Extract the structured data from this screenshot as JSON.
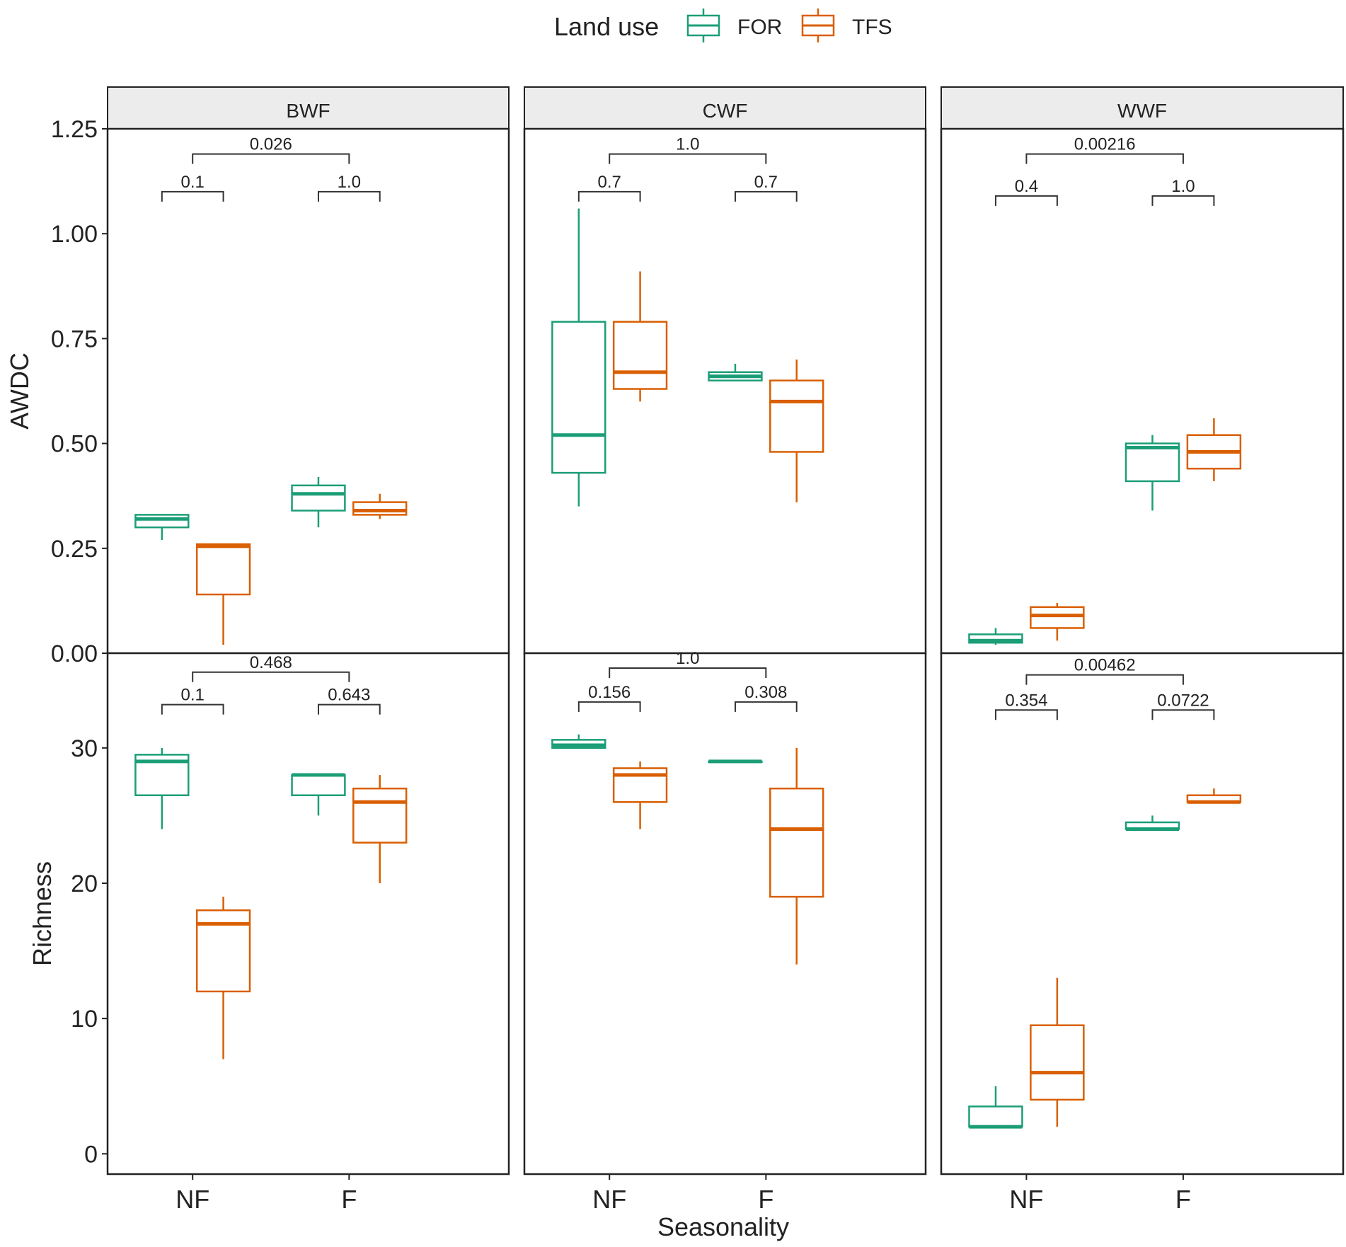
{
  "legend": {
    "title": "Land use",
    "items": [
      {
        "key": "FOR",
        "label": "FOR",
        "color": "#1b9e77"
      },
      {
        "key": "TFS",
        "label": "TFS",
        "color": "#d95f02"
      }
    ]
  },
  "chart_data": {
    "type": "boxplot",
    "xlabel": "Seasonality",
    "categories": [
      "NF",
      "F"
    ],
    "facets": [
      "BWF",
      "CWF",
      "WWF"
    ],
    "rows": [
      {
        "ylabel": "AWDC",
        "ylim": [
          0,
          1.25
        ],
        "ticks": [
          0,
          0.25,
          0.5,
          0.75,
          1.0,
          1.25
        ],
        "tick_labels": [
          "0.00",
          "0.25",
          "0.50",
          "0.75",
          "1.00",
          "1.25"
        ],
        "panels": [
          {
            "facet": "BWF",
            "boxes": [
              {
                "cat": "NF",
                "group": "FOR",
                "min": 0.27,
                "q1": 0.3,
                "median": 0.32,
                "q3": 0.33,
                "max": 0.33
              },
              {
                "cat": "NF",
                "group": "TFS",
                "min": 0.02,
                "q1": 0.14,
                "median": 0.255,
                "q3": 0.26,
                "max": 0.26
              },
              {
                "cat": "F",
                "group": "FOR",
                "min": 0.3,
                "q1": 0.34,
                "median": 0.38,
                "q3": 0.4,
                "max": 0.42
              },
              {
                "cat": "F",
                "group": "TFS",
                "min": 0.32,
                "q1": 0.33,
                "median": 0.34,
                "q3": 0.36,
                "max": 0.38
              }
            ],
            "brackets": [
              {
                "from": "NF-FOR",
                "to": "NF-TFS",
                "value": 1.1,
                "label": "0.1"
              },
              {
                "from": "F-FOR",
                "to": "F-TFS",
                "value": 1.1,
                "label": "1.0"
              },
              {
                "from": "NF",
                "to": "F",
                "value": 1.19,
                "label": "0.026"
              }
            ]
          },
          {
            "facet": "CWF",
            "boxes": [
              {
                "cat": "NF",
                "group": "FOR",
                "min": 0.35,
                "q1": 0.43,
                "median": 0.52,
                "q3": 0.79,
                "max": 1.06
              },
              {
                "cat": "NF",
                "group": "TFS",
                "min": 0.6,
                "q1": 0.63,
                "median": 0.67,
                "q3": 0.79,
                "max": 0.91
              },
              {
                "cat": "F",
                "group": "FOR",
                "min": 0.65,
                "q1": 0.65,
                "median": 0.66,
                "q3": 0.67,
                "max": 0.69
              },
              {
                "cat": "F",
                "group": "TFS",
                "min": 0.36,
                "q1": 0.48,
                "median": 0.6,
                "q3": 0.65,
                "max": 0.7
              }
            ],
            "brackets": [
              {
                "from": "NF-FOR",
                "to": "NF-TFS",
                "value": 1.1,
                "label": "0.7"
              },
              {
                "from": "F-FOR",
                "to": "F-TFS",
                "value": 1.1,
                "label": "0.7"
              },
              {
                "from": "NF",
                "to": "F",
                "value": 1.19,
                "label": "1.0"
              }
            ]
          },
          {
            "facet": "WWF",
            "boxes": [
              {
                "cat": "NF",
                "group": "FOR",
                "min": 0.02,
                "q1": 0.025,
                "median": 0.03,
                "q3": 0.045,
                "max": 0.06
              },
              {
                "cat": "NF",
                "group": "TFS",
                "min": 0.03,
                "q1": 0.06,
                "median": 0.09,
                "q3": 0.11,
                "max": 0.12
              },
              {
                "cat": "F",
                "group": "FOR",
                "min": 0.34,
                "q1": 0.41,
                "median": 0.49,
                "q3": 0.5,
                "max": 0.52
              },
              {
                "cat": "F",
                "group": "TFS",
                "min": 0.41,
                "q1": 0.44,
                "median": 0.48,
                "q3": 0.52,
                "max": 0.56
              }
            ],
            "brackets": [
              {
                "from": "NF-FOR",
                "to": "NF-TFS",
                "value": 1.09,
                "label": "0.4"
              },
              {
                "from": "F-FOR",
                "to": "F-TFS",
                "value": 1.09,
                "label": "1.0"
              },
              {
                "from": "NF",
                "to": "F",
                "value": 1.19,
                "label": "0.00216"
              }
            ]
          }
        ]
      },
      {
        "ylabel": "Richness",
        "ylim": [
          -1.5,
          37
        ],
        "ticks": [
          0,
          10,
          20,
          30
        ],
        "tick_labels": [
          "0",
          "10",
          "20",
          "30"
        ],
        "panels": [
          {
            "facet": "BWF",
            "boxes": [
              {
                "cat": "NF",
                "group": "FOR",
                "min": 24,
                "q1": 26.5,
                "median": 29,
                "q3": 29.5,
                "max": 30
              },
              {
                "cat": "NF",
                "group": "TFS",
                "min": 7,
                "q1": 12,
                "median": 17,
                "q3": 18,
                "max": 19
              },
              {
                "cat": "F",
                "group": "FOR",
                "min": 25,
                "q1": 26.5,
                "median": 28,
                "q3": 28,
                "max": 28
              },
              {
                "cat": "F",
                "group": "TFS",
                "min": 20,
                "q1": 23,
                "median": 26,
                "q3": 27,
                "max": 28
              }
            ],
            "brackets": [
              {
                "from": "NF-FOR",
                "to": "NF-TFS",
                "value": 33.2,
                "label": "0.1"
              },
              {
                "from": "F-FOR",
                "to": "F-TFS",
                "value": 33.2,
                "label": "0.643"
              },
              {
                "from": "NF",
                "to": "F",
                "value": 35.6,
                "label": "0.468"
              }
            ]
          },
          {
            "facet": "CWF",
            "boxes": [
              {
                "cat": "NF",
                "group": "FOR",
                "min": 30,
                "q1": 30,
                "median": 30.2,
                "q3": 30.6,
                "max": 31
              },
              {
                "cat": "NF",
                "group": "TFS",
                "min": 24,
                "q1": 26,
                "median": 28,
                "q3": 28.5,
                "max": 29
              },
              {
                "cat": "F",
                "group": "FOR",
                "min": 29,
                "q1": 29,
                "median": 29,
                "q3": 29,
                "max": 29
              },
              {
                "cat": "F",
                "group": "TFS",
                "min": 14,
                "q1": 19,
                "median": 24,
                "q3": 27,
                "max": 30
              }
            ],
            "brackets": [
              {
                "from": "NF-FOR",
                "to": "NF-TFS",
                "value": 33.4,
                "label": "0.156"
              },
              {
                "from": "F-FOR",
                "to": "F-TFS",
                "value": 33.4,
                "label": "0.308"
              },
              {
                "from": "NF",
                "to": "F",
                "value": 35.9,
                "label": "1.0"
              }
            ]
          },
          {
            "facet": "WWF",
            "boxes": [
              {
                "cat": "NF",
                "group": "FOR",
                "min": 2,
                "q1": 2,
                "median": 2,
                "q3": 3.5,
                "max": 5
              },
              {
                "cat": "NF",
                "group": "TFS",
                "min": 2,
                "q1": 4,
                "median": 6,
                "q3": 9.5,
                "max": 13
              },
              {
                "cat": "F",
                "group": "FOR",
                "min": 24,
                "q1": 24,
                "median": 24,
                "q3": 24.5,
                "max": 25
              },
              {
                "cat": "F",
                "group": "TFS",
                "min": 26,
                "q1": 26,
                "median": 26,
                "q3": 26.5,
                "max": 27
              }
            ],
            "brackets": [
              {
                "from": "NF-FOR",
                "to": "NF-TFS",
                "value": 32.8,
                "label": "0.354"
              },
              {
                "from": "F-FOR",
                "to": "F-TFS",
                "value": 32.8,
                "label": "0.0722"
              },
              {
                "from": "NF",
                "to": "F",
                "value": 35.4,
                "label": "0.00462"
              }
            ]
          }
        ]
      }
    ]
  }
}
